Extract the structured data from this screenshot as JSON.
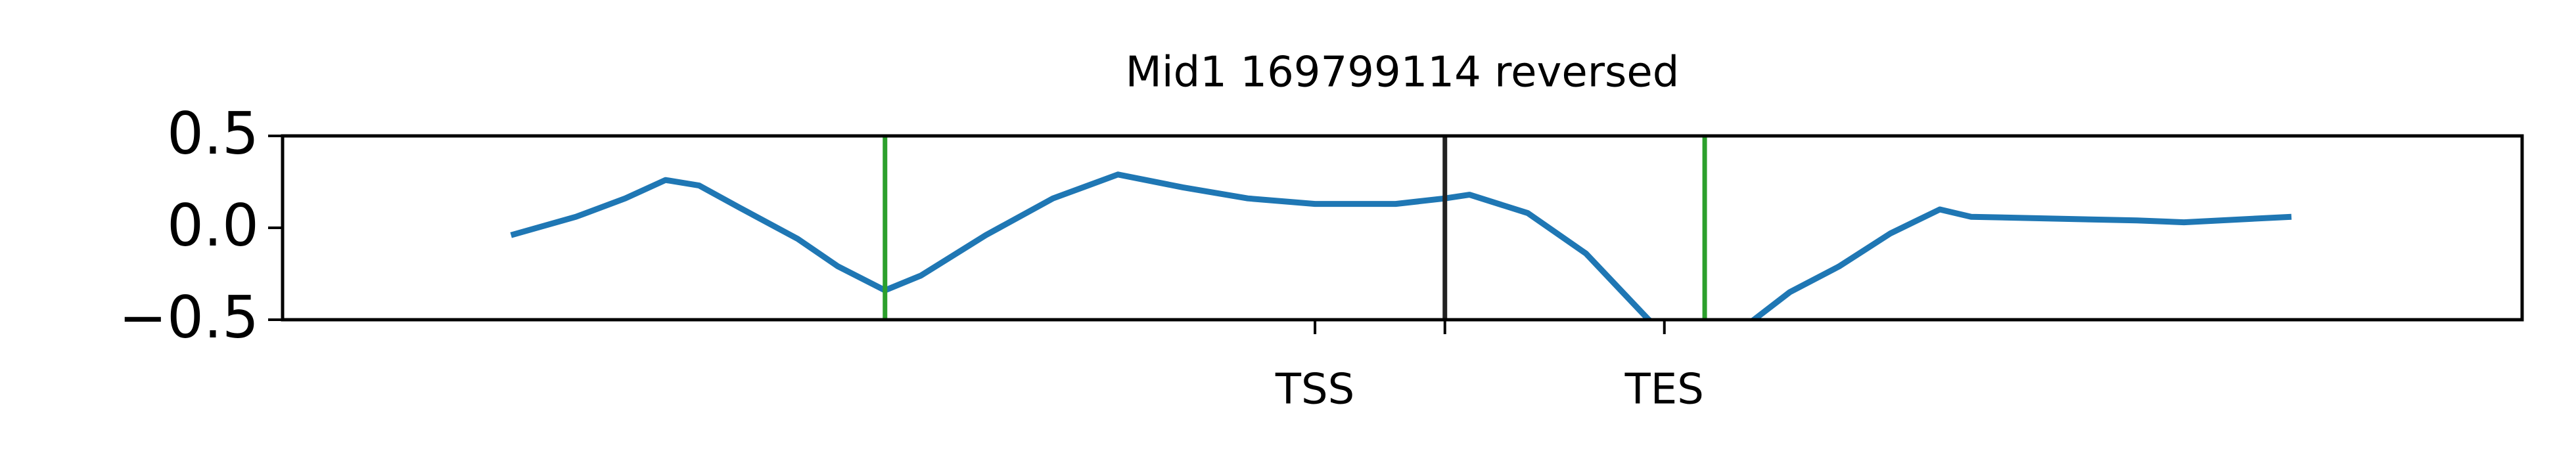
{
  "chart_data": {
    "type": "line",
    "title": "Mid1 169799114 reversed",
    "x": [
      10.2,
      13.1,
      15.3,
      17.1,
      18.6,
      20.4,
      23.0,
      24.8,
      26.9,
      28.5,
      31.4,
      34.4,
      37.3,
      40.2,
      43.1,
      46.1,
      49.7,
      51.9,
      53.0,
      55.6,
      58.2,
      59.6,
      61.0,
      63.5,
      65.7,
      67.3,
      69.5,
      71.8,
      74.0,
      75.4,
      79.1,
      82.8,
      84.9,
      89.7
    ],
    "series": [
      {
        "color": "#1f77b4",
        "values": [
          -0.04,
          0.06,
          0.16,
          0.26,
          0.23,
          0.11,
          -0.06,
          -0.21,
          -0.34,
          -0.26,
          -0.04,
          0.16,
          0.29,
          0.22,
          0.16,
          0.13,
          0.13,
          0.16,
          0.18,
          0.08,
          -0.14,
          -0.32,
          -0.5,
          -0.7,
          -0.5,
          -0.35,
          -0.21,
          -0.03,
          0.1,
          0.06,
          0.05,
          0.04,
          0.03,
          0.06
        ]
      }
    ],
    "xlim": [
      0,
      100
    ],
    "xticks": [
      {
        "value": 46.1,
        "label": "TSS"
      },
      {
        "value": 51.9,
        "label": null
      },
      {
        "value": 61.7,
        "label": "TES"
      }
    ],
    "ylim": [
      -0.5,
      0.5
    ],
    "yticks": [
      {
        "value": -0.5,
        "label": "−0.5"
      },
      {
        "value": 0,
        "label": "0.0"
      },
      {
        "value": 0.5,
        "label": "0.5"
      }
    ],
    "vlines": [
      {
        "x": 26.9,
        "color": "#2ca02c"
      },
      {
        "x": 51.9,
        "color": "#222222"
      },
      {
        "x": 63.5,
        "color": "#2ca02c"
      }
    ]
  }
}
